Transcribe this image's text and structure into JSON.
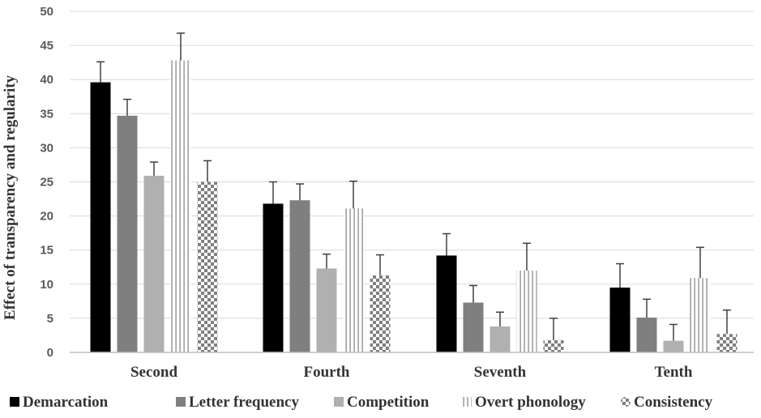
{
  "chart_data": {
    "type": "bar",
    "title": "",
    "xlabel": "",
    "ylabel": "Effect of transparency and regularity",
    "ylim": [
      0,
      50
    ],
    "yticks": [
      0,
      5,
      10,
      15,
      20,
      25,
      30,
      35,
      40,
      45,
      50
    ],
    "grid": "horizontal",
    "legend_position": "bottom",
    "categories": [
      "Second",
      "Fourth",
      "Seventh",
      "Tenth"
    ],
    "series": [
      {
        "name": "Demarcation",
        "pattern": "solid-black",
        "values": [
          39.6,
          21.8,
          14.2,
          9.5
        ],
        "errors": [
          3.0,
          3.2,
          3.2,
          3.5
        ]
      },
      {
        "name": "Letter frequency",
        "pattern": "solid-darkgray",
        "values": [
          34.7,
          22.3,
          7.3,
          5.1
        ],
        "errors": [
          2.4,
          2.4,
          2.5,
          2.7
        ]
      },
      {
        "name": "Competition",
        "pattern": "solid-lightgray",
        "values": [
          25.9,
          12.3,
          3.8,
          1.7
        ],
        "errors": [
          2.0,
          2.1,
          2.1,
          2.4
        ]
      },
      {
        "name": "Overt phonology",
        "pattern": "vertical-lines",
        "values": [
          42.8,
          21.1,
          12.0,
          10.9
        ],
        "errors": [
          4.0,
          4.0,
          4.0,
          4.5
        ]
      },
      {
        "name": "Consistency",
        "pattern": "checkerboard",
        "values": [
          25.0,
          11.3,
          1.8,
          2.7
        ],
        "errors": [
          3.1,
          3.0,
          3.2,
          3.5
        ]
      }
    ],
    "colors": {
      "demarcation": "#000000",
      "letter_frequency": "#7f7f7f",
      "competition": "#b0b0b0",
      "overt_phonology": "#7f7f7f",
      "consistency": "#7f7f7f",
      "grid": "#d9d9d9",
      "axis": "#bfbfbf"
    }
  }
}
